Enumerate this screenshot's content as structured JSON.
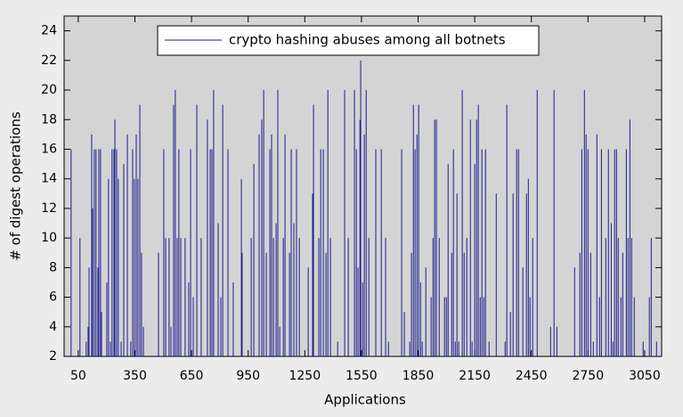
{
  "chart_data": {
    "type": "impulse",
    "x_label": "Applications",
    "y_label": "# of digest operations",
    "xlim": [
      -25,
      3140
    ],
    "ylim": [
      2,
      25
    ],
    "xticks": [
      50,
      350,
      650,
      950,
      1250,
      1550,
      1850,
      2150,
      2450,
      2750,
      3050
    ],
    "yticks": [
      2,
      4,
      6,
      8,
      10,
      12,
      14,
      16,
      18,
      20,
      22,
      24
    ],
    "legend": "top",
    "series": [
      {
        "name": "crypto hashing abuses among all botnets",
        "color": "#1c1c8e",
        "x": [
          12,
          59,
          92,
          102,
          107,
          121,
          126,
          135,
          144,
          154,
          159,
          168,
          173,
          201,
          210,
          220,
          229,
          239,
          244,
          253,
          262,
          277,
          291,
          310,
          328,
          338,
          347,
          357,
          366,
          376,
          385,
          395,
          475,
          503,
          513,
          531,
          541,
          555,
          564,
          574,
          583,
          593,
          616,
          635,
          645,
          659,
          678,
          701,
          734,
          749,
          758,
          767,
          791,
          805,
          815,
          843,
          871,
          914,
          918,
          966,
          980,
          1008,
          1022,
          1032,
          1046,
          1065,
          1074,
          1084,
          1098,
          1107,
          1117,
          1136,
          1145,
          1169,
          1178,
          1192,
          1206,
          1221,
          1268,
          1291,
          1296,
          1324,
          1334,
          1348,
          1362,
          1372,
          1386,
          1424,
          1461,
          1480,
          1513,
          1523,
          1532,
          1542,
          1546,
          1556,
          1565,
          1575,
          1589,
          1626,
          1655,
          1678,
          1693,
          1763,
          1777,
          1806,
          1815,
          1825,
          1834,
          1844,
          1853,
          1863,
          1872,
          1891,
          1919,
          1929,
          1938,
          1947,
          1962,
          1990,
          2000,
          2009,
          2028,
          2037,
          2047,
          2056,
          2065,
          2084,
          2094,
          2108,
          2127,
          2136,
          2150,
          2160,
          2169,
          2179,
          2188,
          2198,
          2207,
          2226,
          2264,
          2311,
          2320,
          2339,
          2353,
          2372,
          2382,
          2405,
          2424,
          2434,
          2443,
          2457,
          2481,
          2552,
          2570,
          2585,
          2679,
          2707,
          2717,
          2731,
          2740,
          2750,
          2764,
          2778,
          2797,
          2811,
          2821,
          2844,
          2858,
          2873,
          2882,
          2891,
          2901,
          2910,
          2924,
          2934,
          2953,
          2962,
          2972,
          2981,
          2995,
          3042,
          3075,
          3085,
          3113
        ],
        "values": [
          16,
          10,
          3,
          4,
          8,
          17,
          12,
          16,
          16,
          8,
          16,
          16,
          5,
          7,
          14,
          3,
          16,
          16,
          18,
          16,
          14,
          3,
          15,
          17,
          3,
          16,
          14,
          17,
          14,
          19,
          9,
          4,
          9,
          16,
          10,
          10,
          4,
          19,
          20,
          10,
          16,
          10,
          10,
          7,
          16,
          6,
          19,
          10,
          18,
          16,
          16,
          20,
          11,
          6,
          19,
          16,
          7,
          14,
          9,
          10,
          15,
          17,
          18,
          20,
          9,
          16,
          17,
          10,
          11,
          20,
          4,
          10,
          17,
          9,
          16,
          11,
          16,
          10,
          8,
          13,
          19,
          10,
          16,
          16,
          9,
          20,
          10,
          3,
          20,
          10,
          20,
          16,
          8,
          18,
          22,
          7,
          17,
          20,
          10,
          16,
          16,
          10,
          3,
          16,
          5,
          3,
          9,
          19,
          16,
          17,
          19,
          7,
          3,
          8,
          6,
          10,
          18,
          18,
          10,
          6,
          6,
          15,
          9,
          16,
          3,
          13,
          3,
          20,
          9,
          10,
          18,
          3,
          15,
          18,
          19,
          6,
          16,
          6,
          16,
          3,
          13,
          3,
          19,
          5,
          13,
          16,
          16,
          8,
          13,
          14,
          6,
          10,
          20,
          4,
          20,
          4,
          8,
          9,
          16,
          20,
          17,
          16,
          9,
          3,
          17,
          6,
          16,
          10,
          16,
          11,
          3,
          16,
          16,
          10,
          6,
          9,
          16,
          10,
          18,
          10,
          6,
          3,
          6,
          10,
          3
        ]
      }
    ]
  }
}
